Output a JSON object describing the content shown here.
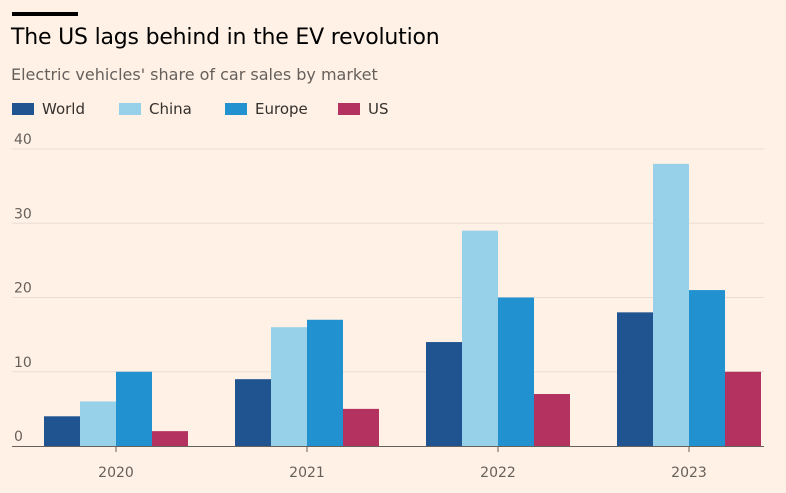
{
  "header": {
    "title": "The US lags behind in the EV revolution",
    "subtitle": "Electric vehicles' share of car sales by market"
  },
  "colors": {
    "background": "#FFF1E5",
    "World": "#1F5490",
    "China": "#96D0E9",
    "Europe": "#2191D0",
    "US": "#B3325F",
    "grid": "#E9DED5",
    "axis": "#66605C"
  },
  "legend": {
    "position": "top-left",
    "items": [
      {
        "label": "World",
        "color": "#1F5490"
      },
      {
        "label": "China",
        "color": "#96D0E9"
      },
      {
        "label": "Europe",
        "color": "#2191D0"
      },
      {
        "label": "US",
        "color": "#B3325F"
      }
    ]
  },
  "chart_data": {
    "type": "bar",
    "title": "The US lags behind in the EV revolution",
    "subtitle": "Electric vehicles' share of car sales by market",
    "xlabel": "",
    "ylabel": "",
    "categories": [
      "2020",
      "2021",
      "2022",
      "2023"
    ],
    "series": [
      {
        "name": "World",
        "values": [
          4,
          9,
          14,
          18
        ]
      },
      {
        "name": "China",
        "values": [
          6,
          16,
          29,
          38
        ]
      },
      {
        "name": "Europe",
        "values": [
          10,
          17,
          20,
          21
        ]
      },
      {
        "name": "US",
        "values": [
          2,
          5,
          7,
          10
        ]
      }
    ],
    "ylim": [
      0,
      40
    ],
    "yticks": [
      0,
      10,
      20,
      30,
      40
    ],
    "grid": true,
    "legend_position": "top-left"
  }
}
